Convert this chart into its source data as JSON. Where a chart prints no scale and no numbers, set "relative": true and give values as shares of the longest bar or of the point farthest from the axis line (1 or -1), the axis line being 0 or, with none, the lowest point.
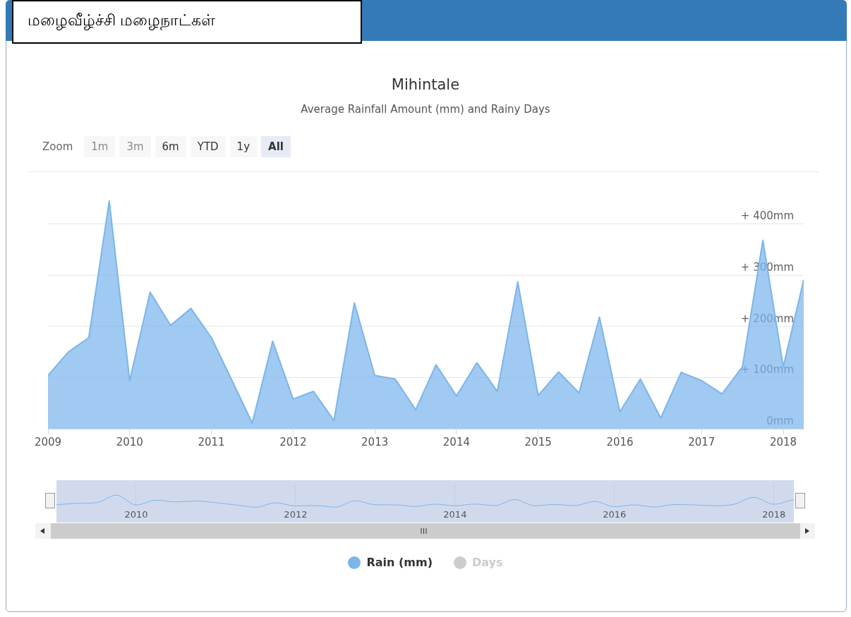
{
  "chart_data": [
    {
      "type": "area",
      "title": "Mihintale",
      "subtitle": "Average Rainfall Amount (mm) and Rainy Days",
      "annotations": [
        "மழைவீழ்ச்சி  மழைநாட்கள்",
        "Zoom",
        "1m",
        "3m",
        "6m",
        "YTD",
        "1y",
        "All"
      ],
      "x": [
        "2009-01",
        "2009-04",
        "2009-07",
        "2009-10",
        "2010-01",
        "2010-04",
        "2010-07",
        "2010-10",
        "2011-01",
        "2011-04",
        "2011-07",
        "2011-10",
        "2012-01",
        "2012-04",
        "2012-07",
        "2012-10",
        "2013-01",
        "2013-04",
        "2013-07",
        "2013-10",
        "2014-01",
        "2014-04",
        "2014-07",
        "2014-10",
        "2015-01",
        "2015-04",
        "2015-07",
        "2015-10",
        "2016-01",
        "2016-04",
        "2016-07",
        "2016-10",
        "2017-01",
        "2017-04",
        "2017-07",
        "2017-10",
        "2018-01",
        "2018-04"
      ],
      "series": [
        {
          "name": "Rain (mm)",
          "color": "#7cb5ec",
          "values": [
            104,
            150,
            178,
            445,
            94,
            267,
            202,
            235,
            178,
            95,
            11,
            171,
            58,
            73,
            16,
            246,
            104,
            97,
            37,
            125,
            64,
            129,
            73,
            287,
            65,
            111,
            70,
            218,
            33,
            97,
            21,
            110,
            94,
            68,
            121,
            368,
            121,
            291
          ]
        },
        {
          "name": "Days",
          "color": "#cccccc",
          "values": [
            null,
            null,
            null,
            null,
            null,
            null,
            null,
            null,
            null,
            null,
            null,
            null,
            null,
            null,
            null,
            null,
            null,
            null,
            null,
            null,
            null,
            null,
            null,
            null,
            null,
            null,
            null,
            null,
            null,
            null,
            null,
            null,
            null,
            null,
            null,
            null,
            null,
            null
          ]
        }
      ],
      "xlim": [
        "2009-01",
        "2018-04"
      ],
      "xticks": [
        "2009",
        "2010",
        "2011",
        "2012",
        "2013",
        "2014",
        "2015",
        "2016",
        "2017",
        "2018"
      ],
      "ylim": [
        0,
        500
      ],
      "yticks": [
        {
          "value": 0,
          "label": "0mm"
        },
        {
          "value": 100,
          "label": "+ 100mm"
        },
        {
          "value": 200,
          "label": "+ 200mm"
        },
        {
          "value": 300,
          "label": "+ 300mm"
        },
        {
          "value": 400,
          "label": "+ 400mm"
        }
      ],
      "grid": "y",
      "legend": "bottom"
    },
    {
      "type": "line",
      "relative": true,
      "x": [
        "2009-01",
        "2009-04",
        "2009-07",
        "2009-10",
        "2010-01",
        "2010-04",
        "2010-07",
        "2010-10",
        "2011-01",
        "2011-04",
        "2011-07",
        "2011-10",
        "2012-01",
        "2012-04",
        "2012-07",
        "2012-10",
        "2013-01",
        "2013-04",
        "2013-07",
        "2013-10",
        "2014-01",
        "2014-04",
        "2014-07",
        "2014-10",
        "2015-01",
        "2015-04",
        "2015-07",
        "2015-10",
        "2016-01",
        "2016-04",
        "2016-07",
        "2016-10",
        "2017-01",
        "2017-04",
        "2017-07",
        "2017-10",
        "2018-01",
        "2018-04"
      ],
      "series": [
        {
          "color": "#7cb5ec",
          "values": [
            0.21,
            0.32,
            0.38,
            1,
            0.19,
            0.59,
            0.44,
            0.52,
            0.38,
            0.19,
            0,
            0.37,
            0.11,
            0.14,
            0.01,
            0.54,
            0.21,
            0.2,
            0.06,
            0.26,
            0.12,
            0.27,
            0.14,
            0.64,
            0.12,
            0.23,
            0.14,
            0.48,
            0.05,
            0.2,
            0.02,
            0.23,
            0.19,
            0.13,
            0.25,
            0.82,
            0.25,
            0.65
          ]
        }
      ],
      "xlim": [
        "2009-01",
        "2018-04"
      ],
      "xticks": [
        "2010",
        "2012",
        "2014",
        "2016",
        "2018"
      ],
      "tick_labels": "x",
      "grid": "x",
      "legend": false
    }
  ]
}
